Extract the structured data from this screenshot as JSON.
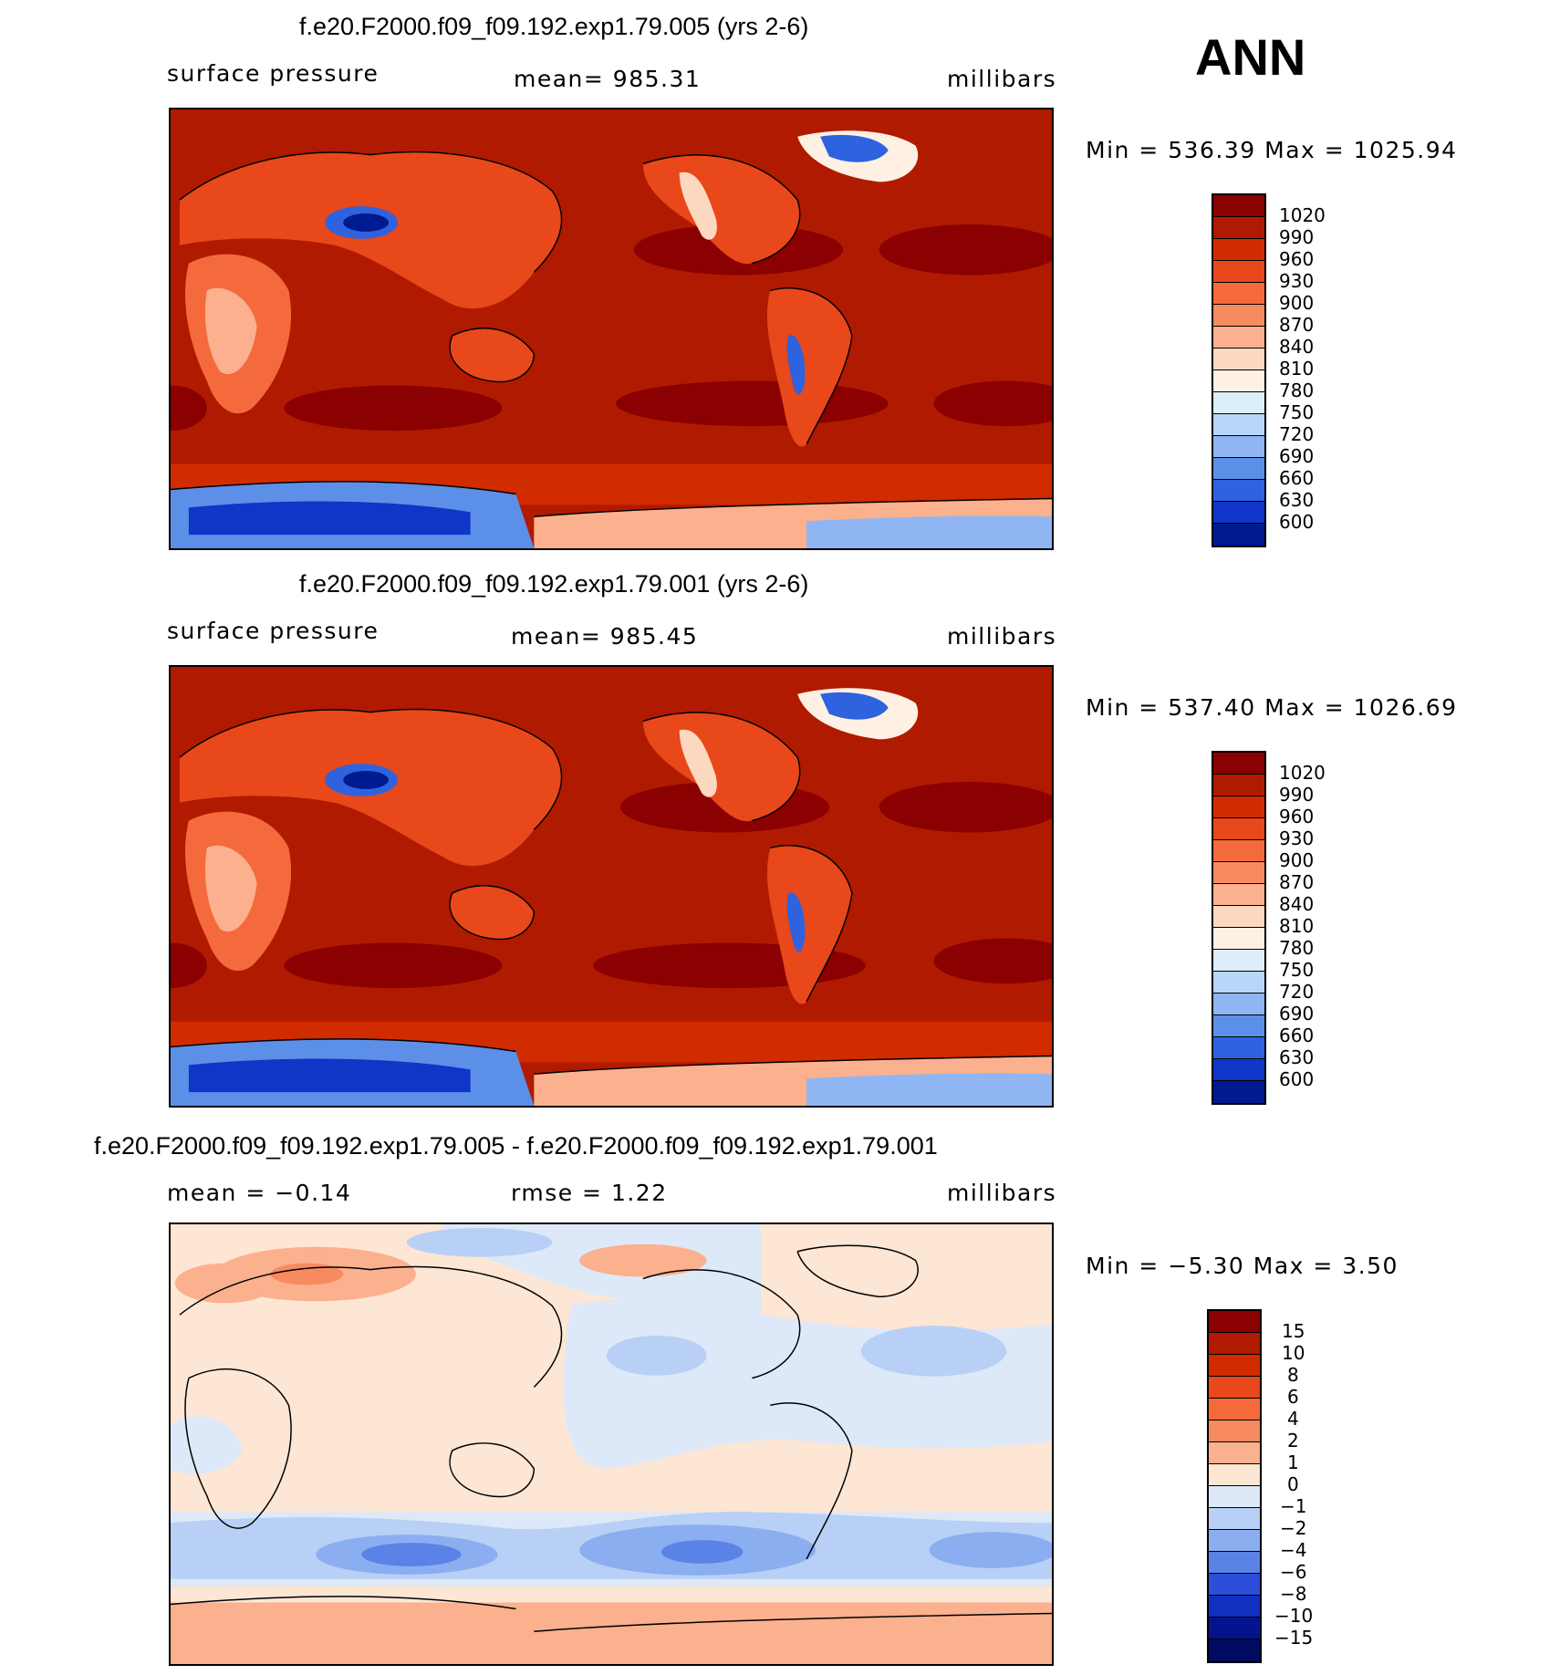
{
  "season": "ANN",
  "panels": [
    {
      "title": "f.e20.F2000.f09_f09.192.exp1.79.005 (yrs 2-6)",
      "left_label": "surface pressure",
      "center_label": "mean= 985.31",
      "units": "millibars",
      "minmax": "Min = 536.39 Max = 1025.94",
      "colorbar_levels": [
        "1020",
        "990",
        "960",
        "930",
        "900",
        "870",
        "840",
        "810",
        "780",
        "750",
        "720",
        "690",
        "660",
        "630",
        "600"
      ]
    },
    {
      "title": "f.e20.F2000.f09_f09.192.exp1.79.001 (yrs 2-6)",
      "left_label": "surface pressure",
      "center_label": "mean= 985.45",
      "units": "millibars",
      "minmax": "Min = 537.40 Max = 1026.69",
      "colorbar_levels": [
        "1020",
        "990",
        "960",
        "930",
        "900",
        "870",
        "840",
        "810",
        "780",
        "750",
        "720",
        "690",
        "660",
        "630",
        "600"
      ]
    },
    {
      "title": "f.e20.F2000.f09_f09.192.exp1.79.005 - f.e20.F2000.f09_f09.192.exp1.79.001",
      "left_label": "mean = −0.14",
      "center_label": "rmse = 1.22",
      "units": "millibars",
      "minmax": "Min = −5.30 Max = 3.50",
      "colorbar_levels": [
        "15",
        "10",
        "8",
        "6",
        "4",
        "2",
        "1",
        "0",
        "−1",
        "−2",
        "−4",
        "−6",
        "−8",
        "−10",
        "−15"
      ]
    }
  ],
  "colors": {
    "abs_scale": [
      "#8b0000",
      "#b01a00",
      "#d12b00",
      "#e8481a",
      "#f46a3c",
      "#f88a60",
      "#fbb08e",
      "#fdd8c0",
      "#fff0e4",
      "#ddeefb",
      "#b8d6f7",
      "#8fb6f2",
      "#5c8fe8",
      "#2f62de",
      "#0f36c6",
      "#001a8f"
    ],
    "diff_scale": [
      "#8b0000",
      "#b01a00",
      "#d12b00",
      "#e8481a",
      "#f46a3c",
      "#f88a60",
      "#fbb08e",
      "#fde6d4",
      "#dde9f8",
      "#b8d0f5",
      "#8aaef0",
      "#5b82e6",
      "#2b4fd8",
      "#1230c0",
      "#05148e",
      "#000a60"
    ]
  }
}
